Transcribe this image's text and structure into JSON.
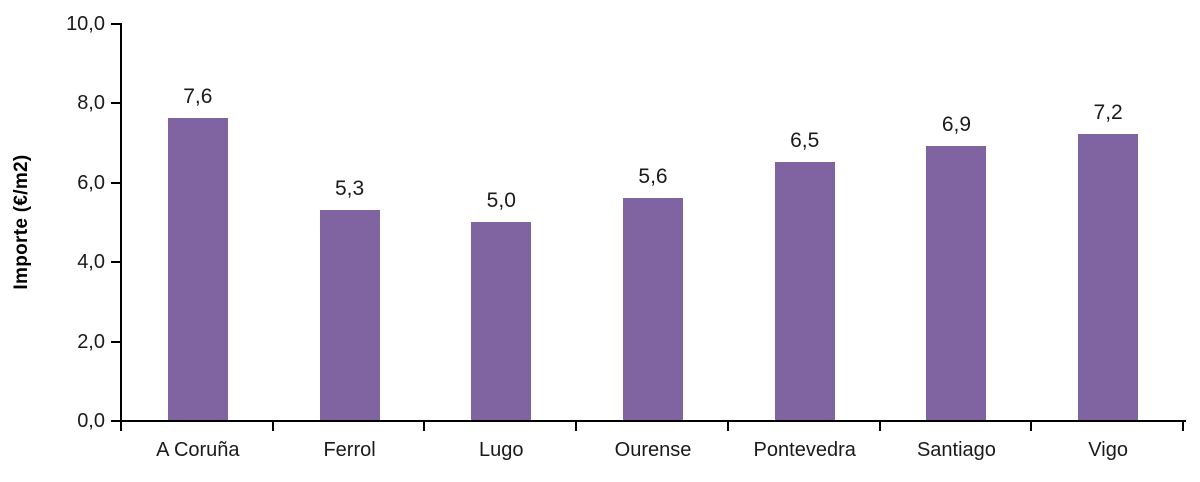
{
  "chart_data": {
    "type": "bar",
    "title": "",
    "categories": [
      "A Coruña",
      "Ferrol",
      "Lugo",
      "Ourense",
      "Pontevedra",
      "Santiago",
      "Vigo"
    ],
    "values": [
      7.6,
      5.3,
      5.0,
      5.6,
      6.5,
      6.9,
      7.2
    ],
    "value_labels": [
      "7,6",
      "5,3",
      "5,0",
      "5,6",
      "6,5",
      "6,9",
      "7,2"
    ],
    "xlabel": "",
    "ylabel": "Importe (€/m2)",
    "ylim": [
      0,
      10
    ],
    "yticks": [
      0,
      2,
      4,
      6,
      8,
      10
    ],
    "ytick_labels": [
      "0,0",
      "2,0",
      "4,0",
      "6,0",
      "8,0",
      "10,0"
    ],
    "grid": false,
    "legend": false,
    "bar_color": "#8064A2",
    "axis_color": "#000000",
    "text_color": "#1A1A1A"
  }
}
